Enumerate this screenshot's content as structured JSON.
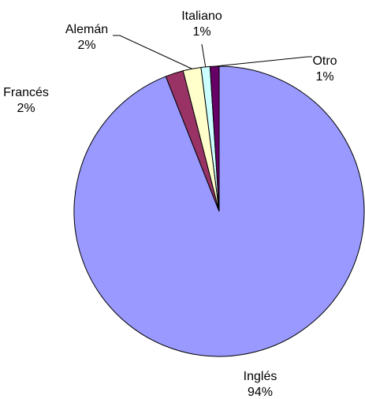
{
  "chart_data": {
    "type": "pie",
    "categories": [
      "Inglés",
      "Francés",
      "Alemán",
      "Italiano",
      "Otro"
    ],
    "values": [
      94,
      2,
      2,
      1,
      1
    ],
    "value_labels": [
      "94%",
      "2%",
      "2%",
      "1%",
      "1%"
    ],
    "colors": [
      "#9999ff",
      "#993366",
      "#ffffcc",
      "#ccffff",
      "#660066"
    ]
  }
}
